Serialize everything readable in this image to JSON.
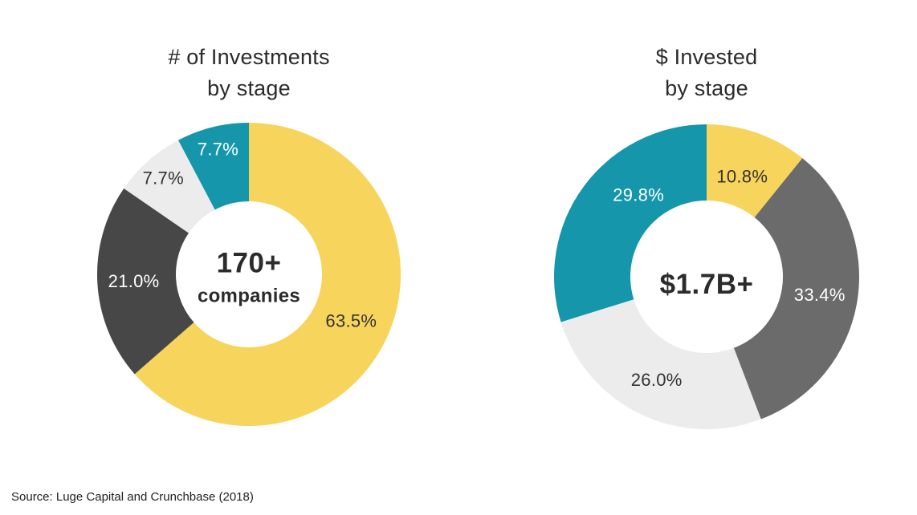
{
  "source_note": "Source: Luge Capital and Crunchbase (2018)",
  "chart_data": [
    {
      "type": "pie",
      "variant": "donut",
      "title_lines": [
        "# of Investments",
        "by stage"
      ],
      "center_lines": [
        "170+",
        "companies"
      ],
      "values": [
        63.5,
        21.0,
        7.7,
        7.7
      ],
      "labels": [
        "63.5%",
        "21.0%",
        "7.7%",
        "7.7%"
      ],
      "colors": [
        "#F7D45C",
        "#474747",
        "#ECECEC",
        "#1596AB"
      ],
      "label_colors": [
        "#333333",
        "#FFFFFF",
        "#333333",
        "#FFFFFF"
      ],
      "label_r": [
        0.74,
        0.76,
        0.85,
        0.85
      ],
      "label_angle_offset": [
        0,
        0,
        0,
        0
      ],
      "start_angle": 0,
      "legend": "none",
      "grid": "off"
    },
    {
      "type": "pie",
      "variant": "donut",
      "title_lines": [
        "$ Invested",
        "by stage"
      ],
      "center_lines": [
        "$1.7B+"
      ],
      "values": [
        10.8,
        33.4,
        26.0,
        29.8
      ],
      "labels": [
        "10.8%",
        "33.4%",
        "26.0%",
        "29.8%"
      ],
      "colors": [
        "#F7D45C",
        "#6B6B6B",
        "#ECECEC",
        "#1596AB"
      ],
      "label_colors": [
        "#333333",
        "#FFFFFF",
        "#333333",
        "#FFFFFF"
      ],
      "label_r": [
        0.7,
        0.75,
        0.75,
        0.7
      ],
      "label_angle_offset": [
        0,
        0,
        0,
        14
      ],
      "start_angle": 0,
      "legend": "none",
      "grid": "off"
    }
  ]
}
